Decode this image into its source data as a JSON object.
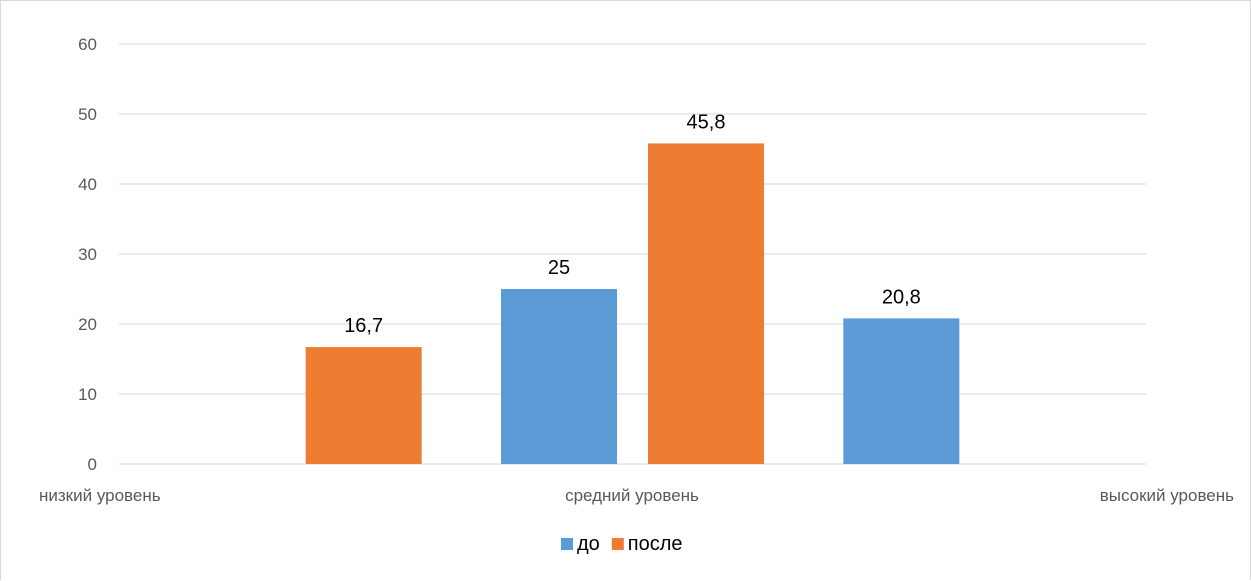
{
  "chart_data": {
    "type": "bar",
    "categories": [
      "низкий уровень",
      "средний уровень",
      "высокий уровень"
    ],
    "series": [
      {
        "name": "до",
        "color": "#5b9bd5",
        "values": [
          null,
          25,
          20.8
        ]
      },
      {
        "name": "после",
        "color": "#ed7d31",
        "values": [
          16.7,
          45.8,
          null
        ]
      }
    ],
    "data_labels": [
      [
        "",
        "25",
        "20,8"
      ],
      [
        "16,7",
        "45,8",
        ""
      ]
    ],
    "y_ticks": [
      "0",
      "10",
      "20",
      "30",
      "40",
      "50",
      "60"
    ],
    "ylim": [
      0,
      60
    ],
    "grid": true,
    "gridline_color": "#d9d9d9",
    "legend_position": "bottom"
  }
}
